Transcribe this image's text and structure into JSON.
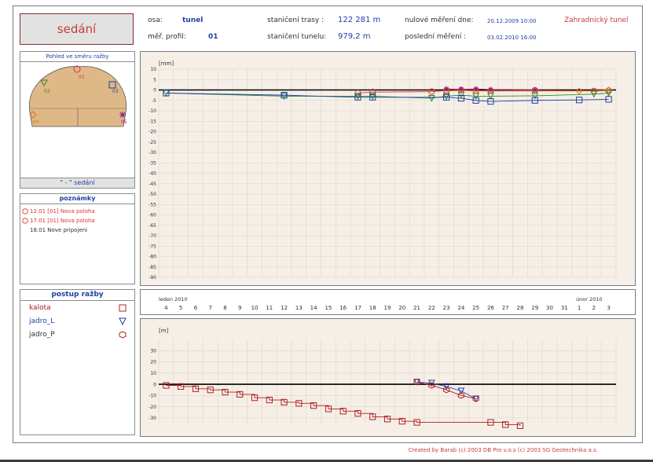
{
  "title": "sedání",
  "header": {
    "osa_label": "osa:",
    "osa_value": "tunel",
    "profil_label": "měř. profil:",
    "profil_value": "01",
    "stan_trasy_label": "staničení trasy :",
    "stan_trasy_value": "122  281 m",
    "stan_tunelu_label": "staničení tunelu:",
    "stan_tunelu_value": "979,2 m",
    "nulove_label": "nulové měření dne:",
    "nulove_value": "20.12.2009 10:00",
    "posledni_label": "poslední měření    :",
    "posledni_value": "03.02.2010 16:00",
    "tunnel_name": "Zahradnický tunel"
  },
  "view_panel": {
    "title": "Pohled ve směru ražby",
    "footer": "\" - \"  sedání",
    "points": [
      {
        "id": "01",
        "color": "#e03030",
        "symbol": "circle"
      },
      {
        "id": "02",
        "color": "#2d8a2d",
        "symbol": "triangle"
      },
      {
        "id": "03",
        "color": "#1f3fa3",
        "symbol": "square"
      },
      {
        "id": "04",
        "color": "#e07020",
        "symbol": "diamond"
      },
      {
        "id": "05",
        "color": "#8a2080",
        "symbol": "star"
      }
    ]
  },
  "notes": {
    "title": "poznámky",
    "items": [
      {
        "text": "12.01 [01] Nova poloha",
        "color": "#e03030",
        "marker": true
      },
      {
        "text": "17.01 [01] Nova poloha",
        "color": "#e03030",
        "marker": true
      },
      {
        "text": "18.01 Nove pripojeni",
        "color": "#303030",
        "marker": false
      }
    ]
  },
  "excavation": {
    "title": "postup ražby",
    "items": [
      {
        "label": "kalota",
        "color": "#b02020",
        "symbol": "square"
      },
      {
        "label": "jadro_L",
        "color": "#1f3fa3",
        "symbol": "triangle"
      },
      {
        "label": "jadro_P",
        "color": "#b02020",
        "symbol": "hexagon"
      }
    ]
  },
  "time_axis": {
    "month_start": "leden 2010",
    "month_feb": "únor 2010",
    "days": [
      "4",
      "5",
      "6",
      "7",
      "8",
      "9",
      "10",
      "11",
      "12",
      "13",
      "14",
      "15",
      "16",
      "17",
      "18",
      "19",
      "20",
      "21",
      "22",
      "23",
      "24",
      "25",
      "26",
      "27",
      "28",
      "29",
      "30",
      "31",
      "1",
      "2",
      "3"
    ]
  },
  "chart_data": [
    {
      "type": "line",
      "ylabel": "[mm]",
      "ylim": [
        -90,
        10
      ],
      "y_ticks": [
        10,
        5,
        0,
        -5,
        -10,
        -15,
        -20,
        -25,
        -30,
        -35,
        -40,
        -45,
        -50,
        -55,
        -60,
        -65,
        -70,
        -75,
        -80,
        -85,
        -90
      ],
      "grid": true,
      "x_unit": "day index (0 = 4.1.2010)",
      "series": [
        {
          "name": "01",
          "color": "#e03030",
          "marker": "circle",
          "x": [
            13,
            14,
            18,
            19,
            20,
            21,
            22,
            25,
            29,
            30
          ],
          "y": [
            -1.5,
            -1.0,
            -0.8,
            -0.3,
            0.0,
            -0.3,
            -0.5,
            -0.2,
            -0.5,
            -0.3
          ]
        },
        {
          "name": "02",
          "color": "#2d8a2d",
          "marker": "triangle",
          "x": [
            0,
            8,
            13,
            14,
            18,
            19,
            20,
            21,
            22,
            25,
            29,
            30
          ],
          "y": [
            -1.5,
            -3.0,
            -3.0,
            -3.0,
            -4.0,
            -3.0,
            -2.5,
            -3.0,
            -3.0,
            -2.8,
            -2.0,
            -1.5
          ]
        },
        {
          "name": "03",
          "color": "#1f3fa3",
          "marker": "square",
          "x": [
            0,
            8,
            13,
            14,
            19,
            20,
            21,
            22,
            25,
            28,
            30
          ],
          "y": [
            -1.5,
            -2.5,
            -3.5,
            -3.5,
            -3.5,
            -4.0,
            -5.0,
            -5.5,
            -5.0,
            -4.8,
            -4.5
          ]
        },
        {
          "name": "04",
          "color": "#e07020",
          "marker": "diamond",
          "x": [
            19,
            20,
            21,
            22,
            25,
            28,
            30
          ],
          "y": [
            -0.5,
            -0.3,
            -0.5,
            -0.5,
            -0.5,
            -0.5,
            0.0
          ]
        },
        {
          "name": "05",
          "color": "#8a2080",
          "marker": "star",
          "x": [
            19,
            20,
            21,
            22,
            25
          ],
          "y": [
            0.5,
            0.3,
            0.5,
            0.2,
            0.0
          ]
        }
      ]
    },
    {
      "type": "line",
      "ylabel": "[m]",
      "ylim": [
        -35,
        40
      ],
      "y_ticks": [
        30,
        20,
        10,
        0,
        -10,
        -20,
        -30
      ],
      "grid": true,
      "x_unit": "day index (0 = 4.1.2010)",
      "series": [
        {
          "name": "kalota",
          "color": "#b02020",
          "marker": "square",
          "x": [
            0,
            1,
            2,
            3,
            4,
            5,
            6,
            7,
            8,
            9,
            10,
            11,
            12,
            13,
            14,
            15,
            16,
            17,
            22,
            23,
            24
          ],
          "y": [
            -1,
            -2,
            -4,
            -5,
            -7,
            -9,
            -12,
            -14,
            -16,
            -17,
            -19,
            -22,
            -24,
            -26,
            -29,
            -31,
            -33,
            -34,
            -34,
            -36,
            -37
          ]
        },
        {
          "name": "jadro_L",
          "color": "#1f3fa3",
          "marker": "triangle",
          "x": [
            17,
            18,
            19,
            20,
            21
          ],
          "y": [
            2,
            1,
            -2,
            -6,
            -13
          ]
        },
        {
          "name": "jadro_P",
          "color": "#b02020",
          "marker": "hexagon",
          "x": [
            17,
            18,
            19,
            20,
            21
          ],
          "y": [
            2,
            -1,
            -5,
            -10,
            -13
          ]
        }
      ]
    }
  ],
  "footer": "Created by Barab (c) 2003 DB Pro v.o.s (c) 2003 SG Geotechnika a.s."
}
